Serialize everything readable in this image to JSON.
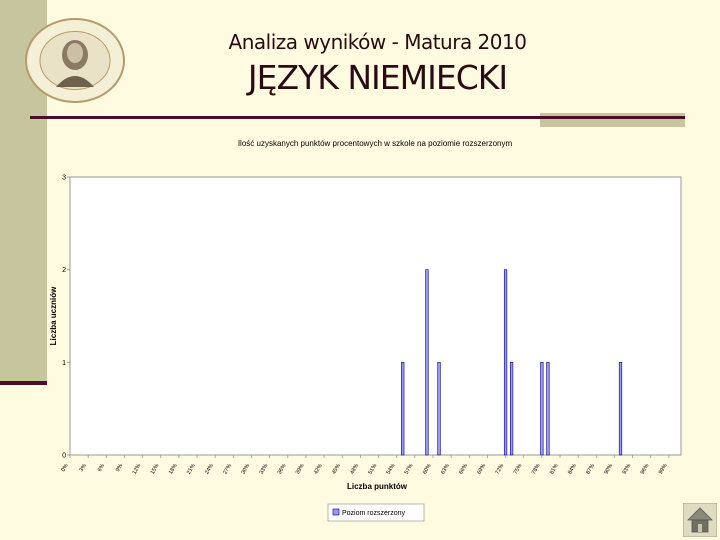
{
  "slide": {
    "title": "Analiza wyników - Matura 2010",
    "subject": "JĘZYK NIEMIECKI"
  },
  "colors": {
    "background": "#fffbe0",
    "accent_band": "#c7c59d",
    "accent_line": "#4a0f26",
    "bar_fill": "#9999ff"
  },
  "icons": [
    "school-seal-icon",
    "home-icon"
  ],
  "chart_data": {
    "type": "bar",
    "title": "Ilość uzyskanych punktów procentowych w szkole na poziomie rozszerzonym",
    "xlabel": "Liczba punktów",
    "ylabel": "Liczba uczniów",
    "ylim": [
      0,
      3
    ],
    "yticks": [
      "0",
      "1",
      "2",
      "3"
    ],
    "grid": false,
    "legend_position": "bottom-center",
    "categories": [
      "0%",
      "3%",
      "6%",
      "9%",
      "12%",
      "15%",
      "18%",
      "21%",
      "24%",
      "27%",
      "30%",
      "33%",
      "36%",
      "39%",
      "42%",
      "45%",
      "48%",
      "51%",
      "54%",
      "57%",
      "60%",
      "63%",
      "66%",
      "69%",
      "72%",
      "75%",
      "78%",
      "81%",
      "84%",
      "87%",
      "90%",
      "93%",
      "96%",
      "99%"
    ],
    "series": [
      {
        "name": "Poziom rozszerzony",
        "points": [
          {
            "x": 55,
            "y": 1
          },
          {
            "x": 59,
            "y": 2
          },
          {
            "x": 61,
            "y": 1
          },
          {
            "x": 72,
            "y": 2
          },
          {
            "x": 73,
            "y": 1
          },
          {
            "x": 78,
            "y": 1
          },
          {
            "x": 79,
            "y": 1
          },
          {
            "x": 91,
            "y": 1
          }
        ]
      }
    ]
  }
}
